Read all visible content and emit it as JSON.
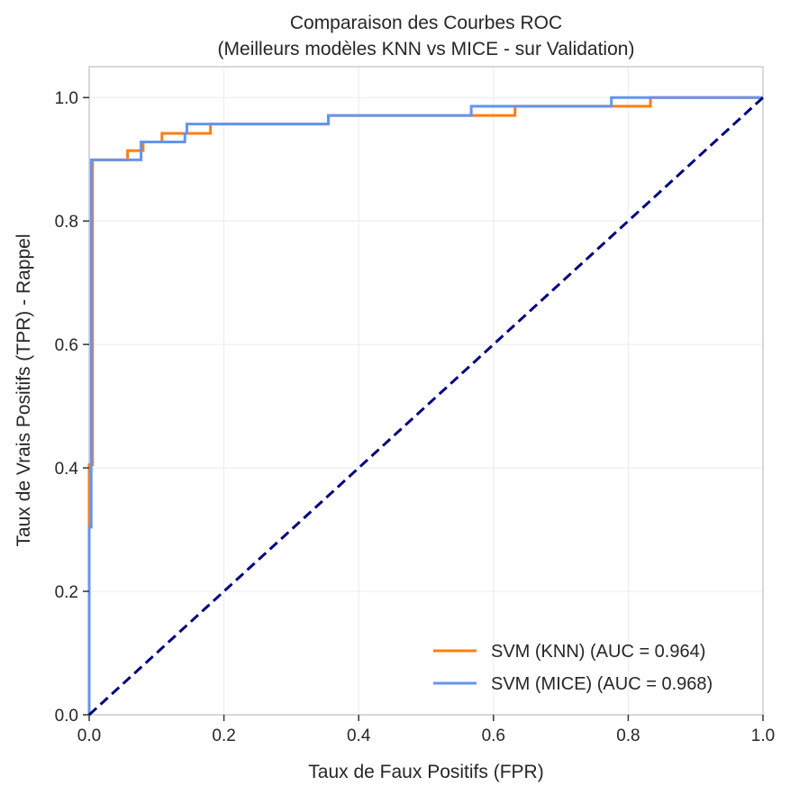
{
  "chart_data": {
    "type": "line",
    "title": "Comparaison des Courbes ROC",
    "subtitle": "(Meilleurs modèles KNN vs MICE - sur Validation)",
    "xlabel": "Taux de Faux Positifs (FPR)",
    "ylabel": "Taux de Vrais Positifs (TPR) - Rappel",
    "xlim": [
      0,
      1
    ],
    "ylim": [
      0,
      1.05
    ],
    "xticks": [
      0.0,
      0.2,
      0.4,
      0.6,
      0.8,
      1.0
    ],
    "yticks": [
      0.0,
      0.2,
      0.4,
      0.6,
      0.8,
      1.0
    ],
    "xtick_labels": [
      "0.0",
      "0.2",
      "0.4",
      "0.6",
      "0.8",
      "1.0"
    ],
    "ytick_labels": [
      "0.0",
      "0.2",
      "0.4",
      "0.6",
      "0.8",
      "1.0"
    ],
    "grid": true,
    "legend_position": "bottom-right",
    "series": [
      {
        "name": "SVM (KNN) (AUC = 0.964)",
        "color": "#ff7f0e",
        "x": [
          0,
          0,
          0.005,
          0.005,
          0.005,
          0.005,
          0.057,
          0.057,
          0.08,
          0.08,
          0.108,
          0.108,
          0.18,
          0.18,
          0.355,
          0.355,
          0.632,
          0.632,
          0.833,
          0.833,
          1.0
        ],
        "y": [
          0,
          0.405,
          0.405,
          0.655,
          0.655,
          0.899,
          0.899,
          0.914,
          0.914,
          0.928,
          0.928,
          0.942,
          0.942,
          0.957,
          0.957,
          0.971,
          0.971,
          0.986,
          0.986,
          1.0,
          1.0
        ]
      },
      {
        "name": "SVM (MICE) (AUC = 0.968)",
        "color": "#6495ed",
        "x": [
          0,
          0,
          0.003,
          0.003,
          0.077,
          0.077,
          0.142,
          0.142,
          0.145,
          0.145,
          0.355,
          0.355,
          0.567,
          0.567,
          0.775,
          0.775,
          1.0
        ],
        "y": [
          0,
          0.304,
          0.304,
          0.899,
          0.899,
          0.928,
          0.928,
          0.942,
          0.942,
          0.957,
          0.957,
          0.971,
          0.971,
          0.986,
          0.986,
          1.0,
          1.0
        ]
      }
    ],
    "reference_line": {
      "x": [
        0,
        1
      ],
      "y": [
        0,
        1
      ],
      "color": "#000080",
      "style": "dashed"
    }
  }
}
